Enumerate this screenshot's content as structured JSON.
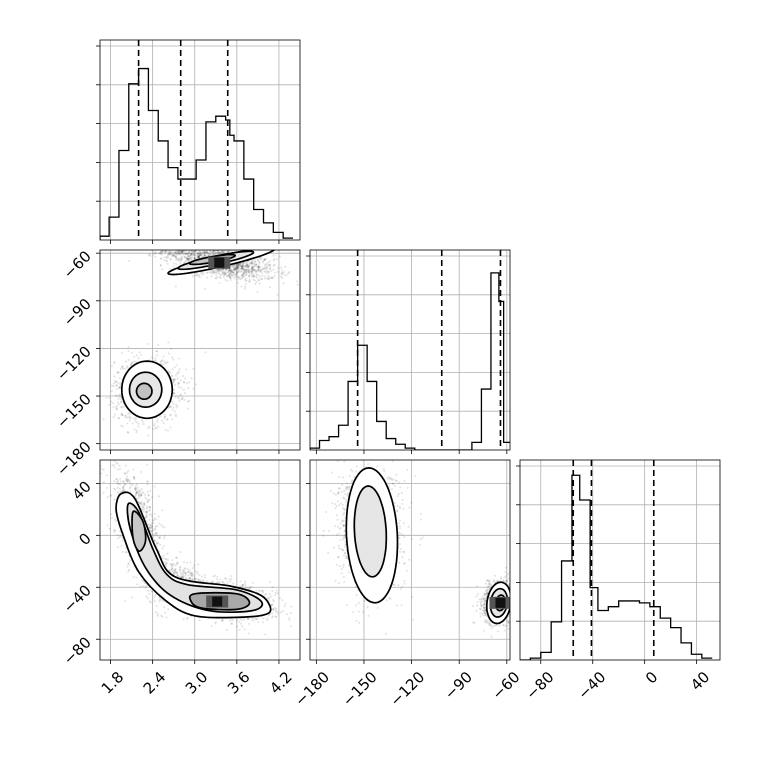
{
  "chart_data": {
    "type": "corner",
    "parameters": [
      {
        "axis_range": [
          1.65,
          4.5
        ],
        "ticks": [
          1.8,
          2.4,
          3.0,
          3.6,
          4.2
        ],
        "tick_labels": [
          "1.8",
          "2.4",
          "3.0",
          "3.6",
          "4.2"
        ],
        "quantiles": [
          2.2,
          2.8,
          3.47
        ],
        "histogram": {
          "bin_edges": [
            1.65,
            1.78,
            1.92,
            2.06,
            2.13,
            2.2,
            2.34,
            2.48,
            2.62,
            2.76,
            2.89,
            3.02,
            3.09,
            3.16,
            3.3,
            3.44,
            3.5,
            3.56,
            3.7,
            3.84,
            3.98,
            4.12,
            4.26,
            4.4
          ],
          "counts": [
            0.02,
            0.12,
            0.47,
            0.82,
            0.82,
            0.9,
            0.68,
            0.52,
            0.38,
            0.32,
            0.32,
            0.42,
            0.42,
            0.62,
            0.65,
            0.63,
            0.55,
            0.52,
            0.32,
            0.16,
            0.09,
            0.04,
            0.01
          ],
          "ymax": 1.05
        }
      },
      {
        "axis_range": [
          -184,
          -58
        ],
        "ticks": [
          -180,
          -150,
          -120,
          -90,
          -60
        ],
        "tick_labels": [
          "−180",
          "−150",
          "−120",
          "−90",
          "−60"
        ],
        "quantiles": [
          -154,
          -101,
          -64
        ],
        "histogram": {
          "bin_edges": [
            -184,
            -178,
            -172,
            -166,
            -160,
            -154,
            -148,
            -142,
            -136,
            -130,
            -124,
            -118,
            -112,
            -106,
            -100,
            -94,
            -88,
            -82,
            -76,
            -70,
            -65,
            -62,
            -58
          ],
          "counts": [
            0.01,
            0.05,
            0.07,
            0.13,
            0.36,
            0.55,
            0.36,
            0.15,
            0.06,
            0.03,
            0.01,
            0.0,
            0.0,
            0.0,
            0.0,
            0.0,
            0.0,
            0.04,
            0.32,
            0.93,
            0.78,
            0.04
          ],
          "ymax": 1.05
        }
      },
      {
        "axis_range": [
          -96,
          58
        ],
        "ticks": [
          -80,
          -40,
          0,
          40
        ],
        "tick_labels": [
          "−80",
          "−40",
          "0",
          "40"
        ],
        "quantiles": [
          -55,
          -41,
          7
        ],
        "histogram": {
          "bin_edges": [
            -96,
            -88,
            -80,
            -72,
            -64,
            -56,
            -50,
            -42,
            -36,
            -28,
            -20,
            -12,
            -4,
            4,
            12,
            20,
            28,
            36,
            44,
            52
          ],
          "counts": [
            0.0,
            0.01,
            0.04,
            0.2,
            0.52,
            0.97,
            0.84,
            0.38,
            0.26,
            0.28,
            0.31,
            0.31,
            0.3,
            0.28,
            0.22,
            0.17,
            0.09,
            0.03,
            0.01
          ],
          "ymax": 1.05
        }
      }
    ],
    "joint": [
      {
        "name": "x0-x1",
        "x_param": 0,
        "y_param": 1,
        "modes": [
          {
            "center": [
              3.35,
              -65
            ],
            "sx": 0.4,
            "sy": 6,
            "rho": -0.55,
            "n": 1500
          },
          {
            "center": [
              2.32,
              -146
            ],
            "sx": 0.23,
            "sy": 10,
            "rho": 0.05,
            "n": 1100
          }
        ],
        "contours": [
          {
            "level": "outer",
            "center": [
              3.38,
              -65
            ],
            "rx": 0.78,
            "ry": 3.4,
            "angle": -13
          },
          {
            "level": "mid",
            "center": [
              3.3,
              -64.5
            ],
            "rx": 0.55,
            "ry": 2.6,
            "angle": -12
          },
          {
            "level": "inner",
            "center": [
              3.25,
              -64
            ],
            "rx": 0.33,
            "ry": 1.8,
            "angle": -10
          },
          {
            "level": "outer",
            "center": [
              2.32,
              -146
            ],
            "rx": 0.36,
            "ry": 18,
            "angle": 0
          },
          {
            "level": "mid",
            "center": [
              2.3,
              -146
            ],
            "rx": 0.23,
            "ry": 11,
            "angle": 0
          },
          {
            "level": "inner",
            "center": [
              2.28,
              -147
            ],
            "rx": 0.11,
            "ry": 5,
            "angle": 0
          }
        ],
        "density_peak": [
          3.35,
          -66
        ]
      },
      {
        "name": "x0-x2",
        "x_param": 0,
        "y_param": 2,
        "modes": [
          {
            "center": [
              3.38,
              -50
            ],
            "sx": 0.38,
            "sy": 7,
            "rho": -0.35,
            "n": 1400
          },
          {
            "center": [
              2.2,
              8
            ],
            "sx": 0.17,
            "sy": 21,
            "rho": -0.6,
            "n": 900
          },
          {
            "center": [
              2.75,
              -35
            ],
            "sx": 0.25,
            "sy": 9,
            "rho": -0.5,
            "n": 500
          }
        ],
        "contour_outer": [
          [
            1.95,
            32
          ],
          [
            2.15,
            28
          ],
          [
            2.45,
            -10
          ],
          [
            2.72,
            -32
          ],
          [
            3.5,
            -39
          ],
          [
            3.9,
            -45
          ],
          [
            4.05,
            -52
          ],
          [
            4.05,
            -60
          ],
          [
            3.7,
            -63
          ],
          [
            3.0,
            -62
          ],
          [
            2.58,
            -50
          ],
          [
            2.2,
            -28
          ],
          [
            1.98,
            0
          ],
          [
            1.88,
            20
          ]
        ],
        "contour_mid": [
          [
            2.05,
            24
          ],
          [
            2.2,
            18
          ],
          [
            2.4,
            -10
          ],
          [
            2.6,
            -30
          ],
          [
            2.9,
            -38
          ],
          [
            3.6,
            -42
          ],
          [
            3.95,
            -51
          ],
          [
            3.82,
            -58
          ],
          [
            3.2,
            -58
          ],
          [
            2.65,
            -46
          ],
          [
            2.3,
            -25
          ],
          [
            2.08,
            5
          ]
        ],
        "contour_inner": [
          [
            2.12,
            18
          ],
          [
            2.25,
            12
          ],
          [
            2.3,
            0
          ],
          [
            2.28,
            -8
          ],
          [
            2.2,
            -12
          ],
          [
            2.12,
            -2
          ]
        ],
        "contour_inner2": [
          [
            3.0,
            -45
          ],
          [
            3.6,
            -45
          ],
          [
            3.78,
            -52
          ],
          [
            3.6,
            -57
          ],
          [
            3.1,
            -56
          ],
          [
            2.95,
            -51
          ]
        ],
        "density_peak": [
          3.32,
          -51
        ]
      },
      {
        "name": "x1-x2",
        "x_param": 1,
        "y_param": 2,
        "modes": [
          {
            "center": [
              -146,
              4
            ],
            "sx": 10,
            "sy": 23,
            "rho": -0.05,
            "n": 1400
          },
          {
            "center": [
              -65,
              -51
            ],
            "sx": 5,
            "sy": 8,
            "rho": 0.15,
            "n": 1200
          }
        ],
        "contours": [
          {
            "level": "outer",
            "center": [
              -145,
              0
            ],
            "rx": 16,
            "ry": 52,
            "angle": -3
          },
          {
            "level": "mid",
            "center": [
              -146,
              3
            ],
            "rx": 10,
            "ry": 35,
            "angle": -3
          },
          {
            "level": "outer",
            "center": [
              -65,
              -52
            ],
            "rx": 7.5,
            "ry": 16,
            "angle": 8
          },
          {
            "level": "mid",
            "center": [
              -65,
              -52
            ],
            "rx": 5.3,
            "ry": 11,
            "angle": 8
          },
          {
            "level": "inner",
            "center": [
              -64,
              -52
            ],
            "rx": 3,
            "ry": 6,
            "angle": 8
          }
        ],
        "density_peak": [
          -64,
          -52
        ]
      }
    ]
  }
}
